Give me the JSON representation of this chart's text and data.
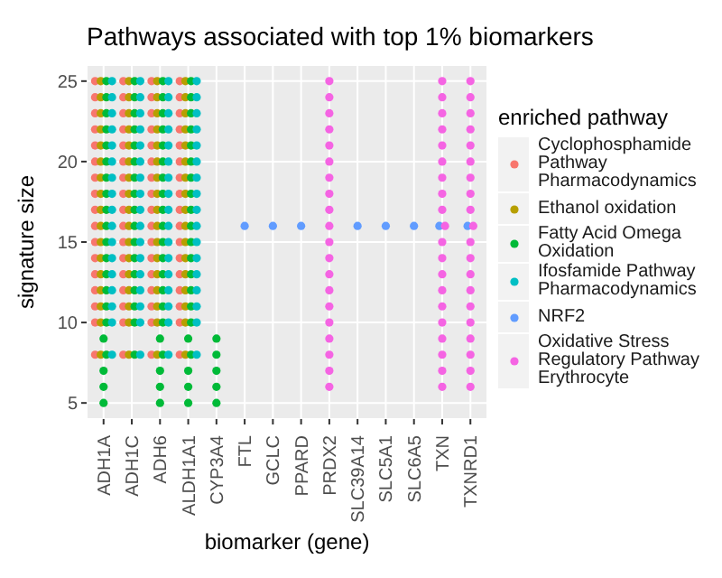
{
  "chart_data": {
    "type": "scatter",
    "title": "Pathways associated with top 1% biomarkers",
    "xlabel": "biomarker (gene)",
    "ylabel": "signature size",
    "legend_title": "enriched pathway",
    "categories": [
      "ADH1A",
      "ADH1C",
      "ADH6",
      "ALDH1A1",
      "CYP3A4",
      "FTL",
      "GCLC",
      "PPARD",
      "PRDX2",
      "SLC39A14",
      "SLC5A1",
      "SLC6A5",
      "TXN",
      "TXNRD1"
    ],
    "ylim": [
      4,
      26
    ],
    "yticks": [
      5,
      10,
      15,
      20,
      25
    ],
    "grid": true,
    "legend": "right",
    "marker": "circle",
    "series": [
      {
        "name": "Cyclophosphamide Pathway Pharmacodynamics",
        "color": "#f8766d",
        "x": [
          "ADH1A",
          "ADH1A",
          "ADH1A",
          "ADH1A",
          "ADH1A",
          "ADH1A",
          "ADH1A",
          "ADH1A",
          "ADH1A",
          "ADH1A",
          "ADH1A",
          "ADH1A",
          "ADH1A",
          "ADH1A",
          "ADH1A",
          "ADH1A",
          "ADH1A",
          "ADH1C",
          "ADH1C",
          "ADH1C",
          "ADH1C",
          "ADH1C",
          "ADH1C",
          "ADH1C",
          "ADH1C",
          "ADH1C",
          "ADH1C",
          "ADH1C",
          "ADH1C",
          "ADH1C",
          "ADH1C",
          "ADH1C",
          "ADH1C",
          "ADH1C",
          "ADH6",
          "ADH6",
          "ADH6",
          "ADH6",
          "ADH6",
          "ADH6",
          "ADH6",
          "ADH6",
          "ADH6",
          "ADH6",
          "ADH6",
          "ADH6",
          "ADH6",
          "ADH6",
          "ADH6",
          "ADH6",
          "ADH6",
          "ALDH1A1",
          "ALDH1A1",
          "ALDH1A1",
          "ALDH1A1",
          "ALDH1A1",
          "ALDH1A1",
          "ALDH1A1",
          "ALDH1A1",
          "ALDH1A1",
          "ALDH1A1",
          "ALDH1A1",
          "ALDH1A1",
          "ALDH1A1",
          "ALDH1A1",
          "ALDH1A1",
          "ALDH1A1",
          "ALDH1A1"
        ],
        "values": [
          8,
          10,
          11,
          12,
          13,
          14,
          15,
          16,
          17,
          18,
          19,
          20,
          21,
          22,
          23,
          24,
          25,
          8,
          10,
          11,
          12,
          13,
          14,
          15,
          16,
          17,
          18,
          19,
          20,
          21,
          22,
          23,
          24,
          25,
          8,
          10,
          11,
          12,
          13,
          14,
          15,
          16,
          17,
          18,
          19,
          20,
          21,
          22,
          23,
          24,
          25,
          8,
          10,
          11,
          12,
          13,
          14,
          15,
          16,
          17,
          18,
          19,
          20,
          21,
          22,
          23,
          24,
          25
        ]
      },
      {
        "name": "Ethanol oxidation",
        "color": "#b79f00",
        "x": [
          "ADH1A",
          "ADH1A",
          "ADH1A",
          "ADH1A",
          "ADH1A",
          "ADH1A",
          "ADH1A",
          "ADH1A",
          "ADH1A",
          "ADH1A",
          "ADH1A",
          "ADH1A",
          "ADH1A",
          "ADH1A",
          "ADH1A",
          "ADH1A",
          "ADH1A",
          "ADH1C",
          "ADH1C",
          "ADH1C",
          "ADH1C",
          "ADH1C",
          "ADH1C",
          "ADH1C",
          "ADH1C",
          "ADH1C",
          "ADH1C",
          "ADH1C",
          "ADH1C",
          "ADH1C",
          "ADH1C",
          "ADH1C",
          "ADH1C",
          "ADH1C",
          "ADH6",
          "ADH6",
          "ADH6",
          "ADH6",
          "ADH6",
          "ADH6",
          "ADH6",
          "ADH6",
          "ADH6",
          "ADH6",
          "ADH6",
          "ADH6",
          "ADH6",
          "ADH6",
          "ADH6",
          "ADH6",
          "ADH6",
          "ALDH1A1",
          "ALDH1A1",
          "ALDH1A1",
          "ALDH1A1",
          "ALDH1A1",
          "ALDH1A1",
          "ALDH1A1",
          "ALDH1A1",
          "ALDH1A1",
          "ALDH1A1",
          "ALDH1A1",
          "ALDH1A1",
          "ALDH1A1",
          "ALDH1A1",
          "ALDH1A1",
          "ALDH1A1",
          "ALDH1A1"
        ],
        "values": [
          8,
          10,
          11,
          12,
          13,
          14,
          15,
          16,
          17,
          18,
          19,
          20,
          21,
          22,
          23,
          24,
          25,
          8,
          10,
          11,
          12,
          13,
          14,
          15,
          16,
          17,
          18,
          19,
          20,
          21,
          22,
          23,
          24,
          25,
          8,
          10,
          11,
          12,
          13,
          14,
          15,
          16,
          17,
          18,
          19,
          20,
          21,
          22,
          23,
          24,
          25,
          8,
          10,
          11,
          12,
          13,
          14,
          15,
          16,
          17,
          18,
          19,
          20,
          21,
          22,
          23,
          24,
          25
        ]
      },
      {
        "name": "Fatty Acid Omega Oxidation",
        "color": "#00ba38",
        "x": [
          "ADH1A",
          "ADH1A",
          "ADH1A",
          "ADH1A",
          "ADH1A",
          "ADH1A",
          "ADH1A",
          "ADH1A",
          "ADH1A",
          "ADH1A",
          "ADH1A",
          "ADH1A",
          "ADH1A",
          "ADH1A",
          "ADH1A",
          "ADH1A",
          "ADH1A",
          "ADH1A",
          "ADH1A",
          "ADH1A",
          "ADH1A",
          "ADH1C",
          "ADH1C",
          "ADH1C",
          "ADH1C",
          "ADH1C",
          "ADH1C",
          "ADH1C",
          "ADH1C",
          "ADH1C",
          "ADH1C",
          "ADH1C",
          "ADH1C",
          "ADH1C",
          "ADH1C",
          "ADH1C",
          "ADH1C",
          "ADH1C",
          "ADH6",
          "ADH6",
          "ADH6",
          "ADH6",
          "ADH6",
          "ADH6",
          "ADH6",
          "ADH6",
          "ADH6",
          "ADH6",
          "ADH6",
          "ADH6",
          "ADH6",
          "ADH6",
          "ADH6",
          "ADH6",
          "ADH6",
          "ADH6",
          "ADH6",
          "ADH6",
          "ADH6",
          "ALDH1A1",
          "ALDH1A1",
          "ALDH1A1",
          "ALDH1A1",
          "ALDH1A1",
          "ALDH1A1",
          "ALDH1A1",
          "ALDH1A1",
          "ALDH1A1",
          "ALDH1A1",
          "ALDH1A1",
          "ALDH1A1",
          "ALDH1A1",
          "ALDH1A1",
          "ALDH1A1",
          "ALDH1A1",
          "ALDH1A1",
          "ALDH1A1",
          "ALDH1A1",
          "ALDH1A1",
          "ALDH1A1",
          "CYP3A4",
          "CYP3A4",
          "CYP3A4",
          "CYP3A4",
          "CYP3A4"
        ],
        "values": [
          5,
          6,
          7,
          8,
          9,
          10,
          11,
          12,
          13,
          14,
          15,
          16,
          17,
          18,
          19,
          20,
          21,
          22,
          23,
          24,
          25,
          8,
          10,
          11,
          12,
          13,
          14,
          15,
          16,
          17,
          18,
          19,
          20,
          21,
          22,
          23,
          24,
          25,
          5,
          6,
          7,
          8,
          9,
          10,
          11,
          12,
          13,
          14,
          15,
          16,
          17,
          18,
          19,
          20,
          21,
          22,
          23,
          24,
          25,
          5,
          6,
          7,
          8,
          9,
          10,
          11,
          12,
          13,
          14,
          15,
          16,
          17,
          18,
          19,
          20,
          21,
          22,
          23,
          24,
          25,
          5,
          6,
          7,
          8,
          9
        ]
      },
      {
        "name": "Ifosfamide Pathway Pharmacodynamics",
        "color": "#00bfc4",
        "x": [
          "ADH1A",
          "ADH1A",
          "ADH1A",
          "ADH1A",
          "ADH1A",
          "ADH1A",
          "ADH1A",
          "ADH1A",
          "ADH1A",
          "ADH1A",
          "ADH1A",
          "ADH1A",
          "ADH1A",
          "ADH1A",
          "ADH1A",
          "ADH1A",
          "ADH1A",
          "ADH1C",
          "ADH1C",
          "ADH1C",
          "ADH1C",
          "ADH1C",
          "ADH1C",
          "ADH1C",
          "ADH1C",
          "ADH1C",
          "ADH1C",
          "ADH1C",
          "ADH1C",
          "ADH1C",
          "ADH1C",
          "ADH1C",
          "ADH1C",
          "ADH1C",
          "ADH6",
          "ADH6",
          "ADH6",
          "ADH6",
          "ADH6",
          "ADH6",
          "ADH6",
          "ADH6",
          "ADH6",
          "ADH6",
          "ADH6",
          "ADH6",
          "ADH6",
          "ADH6",
          "ADH6",
          "ADH6",
          "ADH6",
          "ALDH1A1",
          "ALDH1A1",
          "ALDH1A1",
          "ALDH1A1",
          "ALDH1A1",
          "ALDH1A1",
          "ALDH1A1",
          "ALDH1A1",
          "ALDH1A1",
          "ALDH1A1",
          "ALDH1A1",
          "ALDH1A1",
          "ALDH1A1",
          "ALDH1A1",
          "ALDH1A1",
          "ALDH1A1",
          "ALDH1A1"
        ],
        "values": [
          8,
          10,
          11,
          12,
          13,
          14,
          15,
          16,
          17,
          18,
          19,
          20,
          21,
          22,
          23,
          24,
          25,
          8,
          10,
          11,
          12,
          13,
          14,
          15,
          16,
          17,
          18,
          19,
          20,
          21,
          22,
          23,
          24,
          25,
          8,
          10,
          11,
          12,
          13,
          14,
          15,
          16,
          17,
          18,
          19,
          20,
          21,
          22,
          23,
          24,
          25,
          8,
          10,
          11,
          12,
          13,
          14,
          15,
          16,
          17,
          18,
          19,
          20,
          21,
          22,
          23,
          24,
          25
        ]
      },
      {
        "name": "NRF2",
        "color": "#619cff",
        "x": [
          "FTL",
          "GCLC",
          "PPARD",
          "SLC39A14",
          "SLC5A1",
          "SLC6A5",
          "TXN",
          "TXNRD1"
        ],
        "values": [
          16,
          16,
          16,
          16,
          16,
          16,
          16,
          16
        ]
      },
      {
        "name": "Oxidative Stress Regulatory Pathway Erythrocyte",
        "color": "#f564e3",
        "x": [
          "PRDX2",
          "PRDX2",
          "PRDX2",
          "PRDX2",
          "PRDX2",
          "PRDX2",
          "PRDX2",
          "PRDX2",
          "PRDX2",
          "PRDX2",
          "PRDX2",
          "PRDX2",
          "PRDX2",
          "PRDX2",
          "PRDX2",
          "PRDX2",
          "PRDX2",
          "PRDX2",
          "PRDX2",
          "PRDX2",
          "TXN",
          "TXN",
          "TXN",
          "TXN",
          "TXN",
          "TXN",
          "TXN",
          "TXN",
          "TXN",
          "TXN",
          "TXN",
          "TXN",
          "TXN",
          "TXN",
          "TXN",
          "TXN",
          "TXN",
          "TXN",
          "TXN",
          "TXN",
          "TXNRD1",
          "TXNRD1",
          "TXNRD1",
          "TXNRD1",
          "TXNRD1",
          "TXNRD1",
          "TXNRD1",
          "TXNRD1",
          "TXNRD1",
          "TXNRD1",
          "TXNRD1",
          "TXNRD1",
          "TXNRD1",
          "TXNRD1",
          "TXNRD1",
          "TXNRD1",
          "TXNRD1",
          "TXNRD1",
          "TXNRD1",
          "TXNRD1"
        ],
        "values": [
          6,
          7,
          8,
          9,
          10,
          11,
          12,
          13,
          14,
          15,
          16,
          17,
          18,
          19,
          20,
          21,
          22,
          23,
          24,
          25,
          6,
          7,
          8,
          9,
          10,
          11,
          12,
          13,
          14,
          15,
          16,
          17,
          18,
          19,
          20,
          21,
          22,
          23,
          24,
          25,
          6,
          7,
          8,
          9,
          10,
          11,
          12,
          13,
          14,
          15,
          16,
          17,
          18,
          19,
          20,
          21,
          22,
          23,
          24,
          25
        ]
      }
    ]
  }
}
